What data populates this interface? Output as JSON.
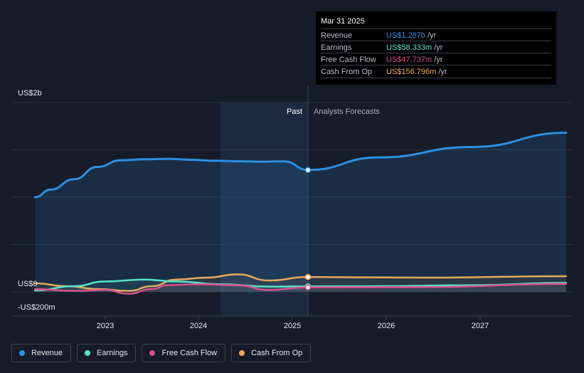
{
  "chart_data": {
    "type": "line",
    "y_axis": {
      "top_label": "US$2b",
      "zero_label": "US$0",
      "bottom_label": "-US$200m",
      "ylim": [
        -200,
        2000
      ]
    },
    "x_ticks": [
      "2023",
      "2024",
      "2025",
      "2026",
      "2027"
    ],
    "divider": {
      "past_label": "Past",
      "forecast_label": "Analysts Forecasts",
      "date": "2025-03-31"
    },
    "series": [
      {
        "name": "Revenue",
        "color": "#2e8fe0",
        "points": [
          [
            "2022-04",
            1000
          ],
          [
            "2022-06",
            1080
          ],
          [
            "2022-09",
            1190
          ],
          [
            "2022-12",
            1320
          ],
          [
            "2023-03",
            1390
          ],
          [
            "2023-06",
            1400
          ],
          [
            "2023-09",
            1405
          ],
          [
            "2023-12",
            1395
          ],
          [
            "2024-03",
            1385
          ],
          [
            "2024-06",
            1380
          ],
          [
            "2024-09",
            1375
          ],
          [
            "2024-12",
            1378
          ],
          [
            "2025-03",
            1287
          ],
          [
            "2025-12",
            1420
          ],
          [
            "2026-12",
            1530
          ],
          [
            "2027-12",
            1680
          ]
        ]
      },
      {
        "name": "Earnings",
        "color": "#58e3c8",
        "points": [
          [
            "2022-04",
            15
          ],
          [
            "2022-09",
            60
          ],
          [
            "2023-01",
            110
          ],
          [
            "2023-06",
            130
          ],
          [
            "2023-10",
            110
          ],
          [
            "2024-04",
            80
          ],
          [
            "2024-10",
            55
          ],
          [
            "2025-03",
            58.333
          ],
          [
            "2025-12",
            60
          ],
          [
            "2026-12",
            70
          ],
          [
            "2027-12",
            95
          ]
        ]
      },
      {
        "name": "Free Cash Flow",
        "color": "#d8508c",
        "points": [
          [
            "2022-04",
            30
          ],
          [
            "2022-09",
            10
          ],
          [
            "2023-01",
            20
          ],
          [
            "2023-04",
            -20
          ],
          [
            "2023-07",
            30
          ],
          [
            "2023-09",
            70
          ],
          [
            "2024-01",
            80
          ],
          [
            "2024-06",
            70
          ],
          [
            "2024-10",
            20
          ],
          [
            "2025-03",
            47.737
          ],
          [
            "2026-06",
            50
          ],
          [
            "2027-12",
            85
          ]
        ]
      },
      {
        "name": "Cash From Op",
        "color": "#e6a95a",
        "points": [
          [
            "2022-04",
            90
          ],
          [
            "2022-08",
            60
          ],
          [
            "2022-12",
            30
          ],
          [
            "2023-04",
            10
          ],
          [
            "2023-07",
            60
          ],
          [
            "2023-10",
            130
          ],
          [
            "2024-02",
            150
          ],
          [
            "2024-06",
            185
          ],
          [
            "2024-10",
            120
          ],
          [
            "2025-03",
            156.796
          ],
          [
            "2026-06",
            150
          ],
          [
            "2027-12",
            165
          ]
        ]
      }
    ]
  },
  "tooltip": {
    "date": "Mar 31 2025",
    "rows": [
      {
        "label": "Revenue",
        "value": "US$1.287b",
        "unit": "/yr",
        "color": "#2e8fe0"
      },
      {
        "label": "Earnings",
        "value": "US$58.333m",
        "unit": "/yr",
        "color": "#58e3c8"
      },
      {
        "label": "Free Cash Flow",
        "value": "US$47.737m",
        "unit": "/yr",
        "color": "#d8508c"
      },
      {
        "label": "Cash From Op",
        "value": "US$156.796m",
        "unit": "/yr",
        "color": "#e6a95a"
      }
    ]
  },
  "legend": [
    {
      "label": "Revenue",
      "color": "#2e8fe0"
    },
    {
      "label": "Earnings",
      "color": "#58e3c8"
    },
    {
      "label": "Free Cash Flow",
      "color": "#d8508c"
    },
    {
      "label": "Cash From Op",
      "color": "#e6a95a"
    }
  ]
}
